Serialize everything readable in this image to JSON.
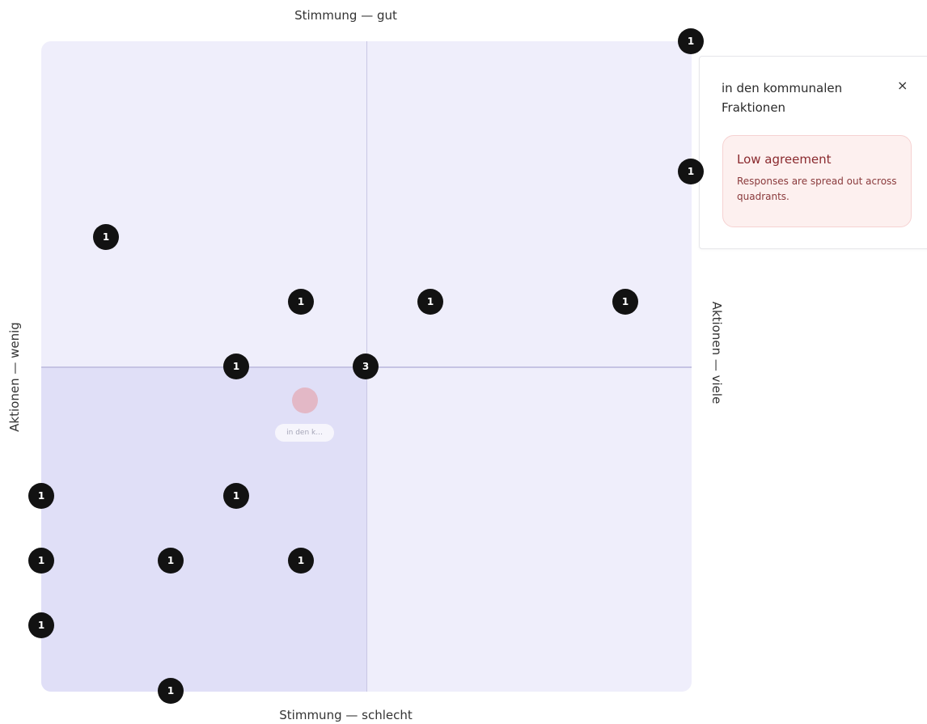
{
  "axes": {
    "top": "Stimmung — gut",
    "bottom": "Stimmung — schlecht",
    "left": "Aktionen — wenig",
    "right": "Aktionen — viele"
  },
  "markers": [
    {
      "count": "1"
    },
    {
      "count": "1"
    },
    {
      "count": "1"
    },
    {
      "count": "1"
    },
    {
      "count": "1"
    },
    {
      "count": "1"
    },
    {
      "count": "1"
    },
    {
      "count": "3"
    },
    {
      "count": "1"
    },
    {
      "count": "1"
    },
    {
      "count": "1"
    },
    {
      "count": "1"
    },
    {
      "count": "1"
    },
    {
      "count": "1"
    },
    {
      "count": "1"
    }
  ],
  "ghost": {
    "label": "in den k..."
  },
  "panel": {
    "title": "in den kommunalen Fraktionen",
    "close_symbol": "×",
    "agreement": {
      "title": "Low agreement",
      "text": "Responses are spread out across quadrants."
    }
  },
  "colors": {
    "board": "#efeefb",
    "highlight_quadrant": "#e0dff7",
    "marker": "#121212",
    "ghost_marker": "#e3b8c6",
    "agreement_bg": "#fdf0ef",
    "agreement_text": "#8a2a2e"
  },
  "icons": {
    "close": "close-icon"
  }
}
